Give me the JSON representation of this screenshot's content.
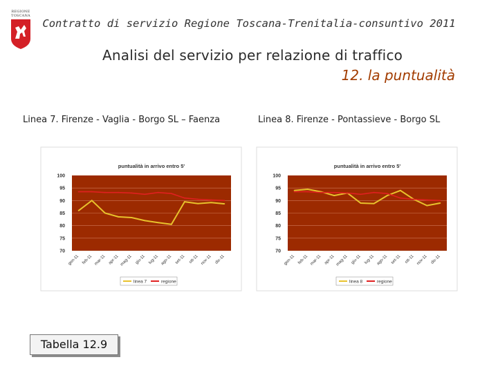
{
  "header": {
    "logo_text": [
      "REGIONE",
      "TOSCANA"
    ],
    "title": "Contratto di servizio Regione Toscana-Trenitalia-consuntivo 2011"
  },
  "main": {
    "title": "Analisi del servizio per relazione di traffico",
    "subtitle": "12. la puntualità"
  },
  "panels": [
    {
      "label": "Linea 7. Firenze - Vaglia - Borgo SL – Faenza"
    },
    {
      "label": "Linea 8. Firenze - Pontassieve - Borgo SL"
    }
  ],
  "footer": {
    "tabella_label": "Tabella 12.9"
  },
  "colors": {
    "plot_bg": "#9c2a00",
    "line_series": "#e8c22c",
    "regione_series": "#e02020",
    "grid": "#d07858"
  },
  "chart_data": [
    {
      "type": "line",
      "title": "puntualità in arrivo entro 5'",
      "xlabel": "",
      "ylabel": "",
      "categories": [
        "gen-11",
        "feb-11",
        "mar-11",
        "apr-11",
        "mag-11",
        "giu-11",
        "lug-11",
        "ago-11",
        "set-11",
        "ott-11",
        "nov-11",
        "dic-11"
      ],
      "ylim": [
        70,
        100
      ],
      "yticks": [
        70,
        75,
        80,
        85,
        90,
        95,
        100
      ],
      "grid": true,
      "legend": "bottom",
      "series": [
        {
          "name": "linea 7",
          "values": [
            86,
            90,
            85,
            83.5,
            83.2,
            82,
            81.2,
            80.5,
            89.5,
            88.8,
            89.2,
            88.7
          ]
        },
        {
          "name": "regione",
          "values": [
            93.5,
            93.5,
            93.2,
            93.2,
            93,
            92.5,
            93.2,
            92.8,
            91,
            90.5,
            90.2,
            90
          ]
        }
      ]
    },
    {
      "type": "line",
      "title": "puntualità in arrivo entro 5'",
      "xlabel": "",
      "ylabel": "",
      "categories": [
        "gen-11",
        "feb-11",
        "mar-11",
        "apr-11",
        "mag-11",
        "giu-11",
        "lug-11",
        "ago-11",
        "set-11",
        "ott-11",
        "nov-11",
        "dic-11"
      ],
      "ylim": [
        70,
        100
      ],
      "yticks": [
        70,
        75,
        80,
        85,
        90,
        95,
        100
      ],
      "grid": true,
      "legend": "bottom",
      "series": [
        {
          "name": "linea 8",
          "values": [
            94,
            94.5,
            93.5,
            92,
            93,
            89,
            88.8,
            92,
            94,
            90.5,
            88,
            89
          ]
        },
        {
          "name": "regione",
          "values": [
            93.5,
            93.5,
            93.2,
            93.2,
            93,
            92.5,
            93.2,
            92.8,
            91,
            90.5,
            90.2,
            90
          ]
        }
      ]
    }
  ]
}
